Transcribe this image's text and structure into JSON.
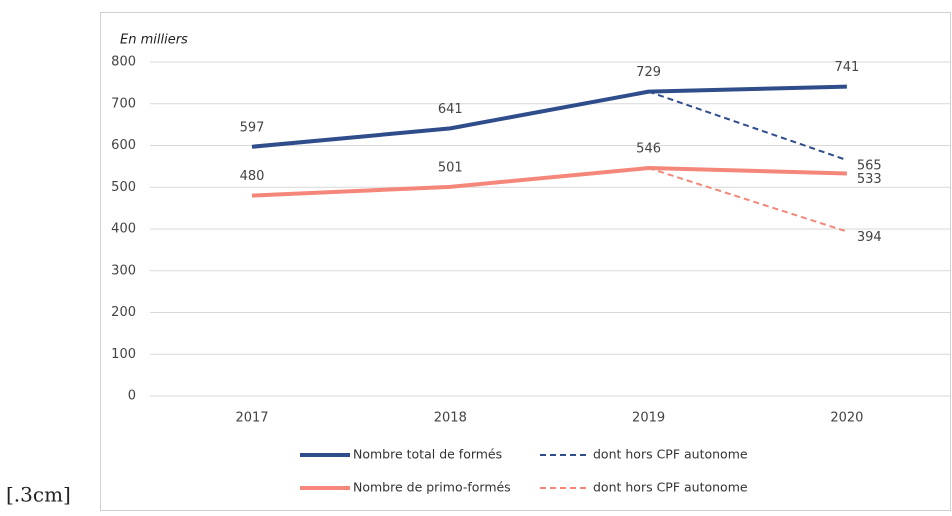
{
  "chart_data": {
    "type": "line",
    "subtitle": "En milliers",
    "categories": [
      "2017",
      "2018",
      "2019",
      "2020"
    ],
    "series": [
      {
        "name": "Nombre total de formés",
        "color": "#2e4d8a",
        "dash": false,
        "values": [
          597,
          641,
          729,
          741
        ]
      },
      {
        "name": "dont hors CPF autonome",
        "color": "#2e4d8a",
        "dash": true,
        "values": [
          null,
          null,
          729,
          565
        ]
      },
      {
        "name": "Nombre de primo-formés",
        "color": "#f4877a",
        "dash": false,
        "values": [
          480,
          501,
          546,
          533
        ]
      },
      {
        "name": "dont hors CPF autonome",
        "color": "#f4877a",
        "dash": true,
        "values": [
          null,
          null,
          546,
          394
        ]
      }
    ],
    "ylim": [
      0,
      800
    ],
    "yticks": [
      0,
      100,
      200,
      300,
      400,
      500,
      600,
      700,
      800
    ],
    "grid": true,
    "legend": "bottom"
  },
  "caption": "[.3cm]"
}
